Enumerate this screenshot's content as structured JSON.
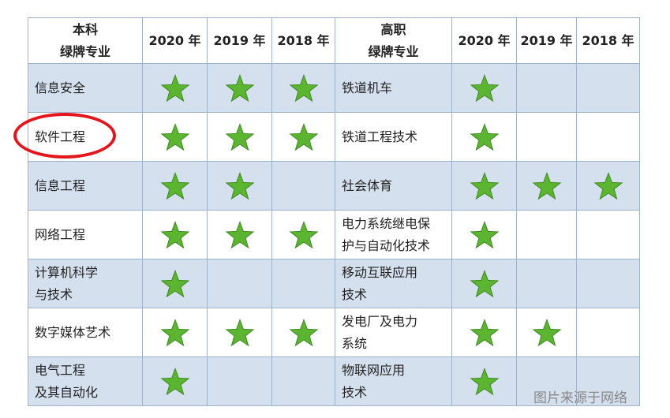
{
  "table": {
    "header": {
      "undergrad": "本科\n绿牌专业",
      "vocational": "高职\n绿牌专业",
      "years": [
        "2020 年",
        "2019 年",
        "2018 年"
      ]
    },
    "rows": [
      {
        "undergrad": "信息安全",
        "undergrad_stars": [
          true,
          true,
          true
        ],
        "vocational": "铁道机车",
        "vocational_stars": [
          true,
          false,
          false
        ]
      },
      {
        "undergrad": "软件工程",
        "undergrad_stars": [
          true,
          true,
          true
        ],
        "vocational": "铁道工程技术",
        "vocational_stars": [
          true,
          false,
          false
        ]
      },
      {
        "undergrad": "信息工程",
        "undergrad_stars": [
          true,
          true,
          false
        ],
        "vocational": "社会体育",
        "vocational_stars": [
          true,
          true,
          true
        ]
      },
      {
        "undergrad": "网络工程",
        "undergrad_stars": [
          true,
          true,
          true
        ],
        "vocational": "电力系统继电保\n护与自动化技术",
        "vocational_stars": [
          true,
          false,
          false
        ]
      },
      {
        "undergrad": "计算机科学\n与技术",
        "undergrad_stars": [
          true,
          false,
          false
        ],
        "vocational": "移动互联应用\n技术",
        "vocational_stars": [
          true,
          false,
          false
        ]
      },
      {
        "undergrad": "数字媒体艺术",
        "undergrad_stars": [
          true,
          true,
          true
        ],
        "vocational": "发电厂及电力\n系统",
        "vocational_stars": [
          true,
          true,
          false
        ]
      },
      {
        "undergrad": "电气工程\n及其自动化",
        "undergrad_stars": [
          true,
          false,
          false
        ],
        "vocational": "物联网应用\n技术",
        "vocational_stars": [
          true,
          false,
          false
        ]
      }
    ]
  },
  "watermark": "图片来源于网络"
}
